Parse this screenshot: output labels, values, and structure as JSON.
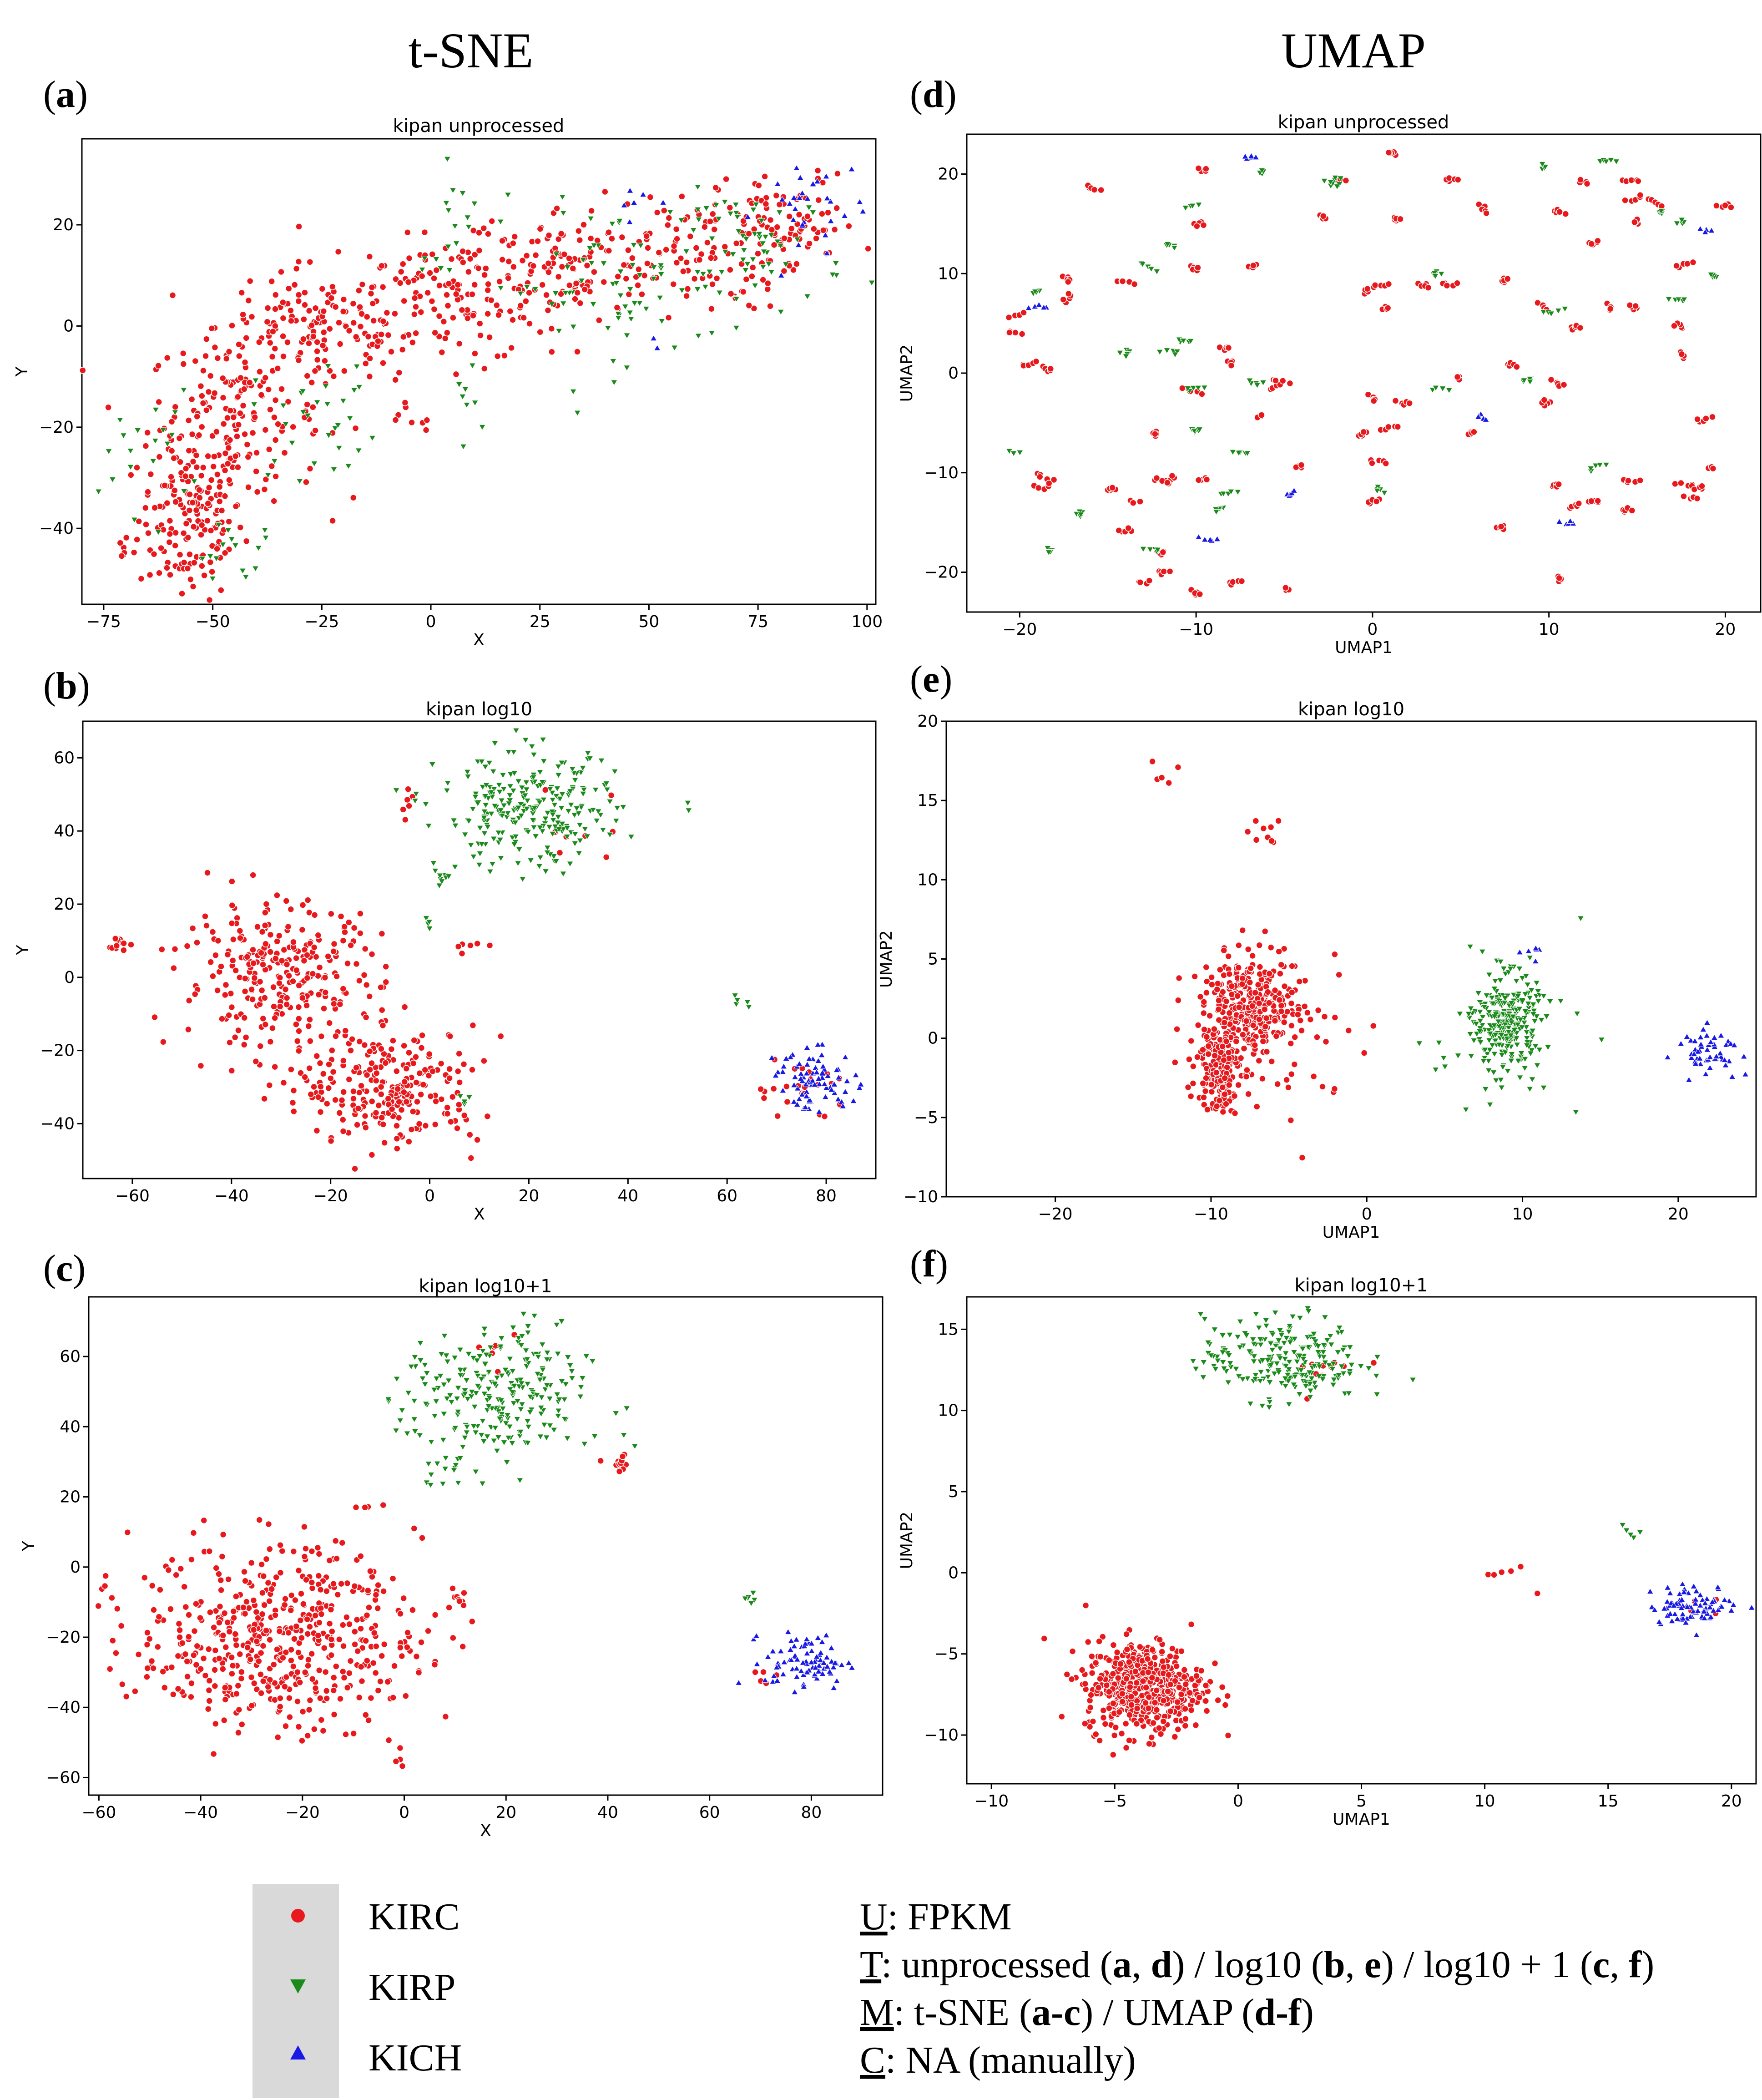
{
  "column_headers": {
    "left": "t-SNE",
    "right": "UMAP"
  },
  "panels": [
    {
      "label": "a",
      "title": "kipan unprocessed"
    },
    {
      "label": "d",
      "title": "kipan unprocessed"
    },
    {
      "label": "b",
      "title": "kipan log10"
    },
    {
      "label": "e",
      "title": "kipan log10"
    },
    {
      "label": "c",
      "title": "kipan log10+1"
    },
    {
      "label": "f",
      "title": "kipan log10+1"
    }
  ],
  "legend": {
    "items": [
      {
        "label": "KIRC",
        "color": "#e8191c",
        "marker": "circle"
      },
      {
        "label": "KIRP",
        "color": "#1a8a1a",
        "marker": "triangle-down"
      },
      {
        "label": "KICH",
        "color": "#1919e6",
        "marker": "triangle-up"
      }
    ]
  },
  "notes": [
    {
      "key": "U",
      "text": ": FPKM"
    },
    {
      "key": "T",
      "parts": [
        ": unprocessed (",
        "a",
        ", ",
        "d",
        ") / log10 (",
        "b",
        ", ",
        "e",
        ") / log10 + 1 (",
        "c",
        ", ",
        "f",
        ")"
      ]
    },
    {
      "key": "M",
      "parts": [
        ": t-SNE (",
        "a-c",
        ") / UMAP (",
        "d-f",
        ")"
      ]
    },
    {
      "key": "C",
      "text": ": NA (manually)"
    }
  ],
  "chart_data": [
    {
      "id": "a",
      "type": "scatter",
      "title": "kipan unprocessed",
      "xlabel": "X",
      "ylabel": "Y",
      "xlim": [
        -80,
        102
      ],
      "ylim": [
        -55,
        37
      ],
      "xticks": [
        -75,
        -50,
        -25,
        0,
        25,
        50,
        75,
        100
      ],
      "yticks": [
        -40,
        -20,
        0,
        20
      ],
      "series": [
        {
          "name": "KIRC",
          "clusters": [
            [
              -55,
              -38,
              6,
              8,
              160
            ],
            [
              -45,
              -18,
              10,
              8,
              170
            ],
            [
              -25,
              0,
              12,
              6,
              150
            ],
            [
              5,
              5,
              12,
              6,
              120
            ],
            [
              30,
              12,
              12,
              6,
              120
            ],
            [
              60,
              15,
              12,
              6,
              110
            ],
            [
              82,
              20,
              8,
              5,
              70
            ],
            [
              -70,
              -45,
              2,
              3,
              6
            ],
            [
              -5,
              -15,
              3,
              4,
              8
            ]
          ]
        },
        {
          "name": "KIRP",
          "clusters": [
            [
              -65,
              -25,
              5,
              6,
              20
            ],
            [
              -25,
              -18,
              8,
              6,
              30
            ],
            [
              40,
              8,
              14,
              8,
              70
            ],
            [
              75,
              15,
              10,
              6,
              60
            ],
            [
              5,
              22,
              3,
              5,
              15
            ],
            [
              -45,
              -45,
              6,
              3,
              15
            ],
            [
              10,
              -15,
              2,
              3,
              8
            ]
          ]
        },
        {
          "name": "KICH",
          "clusters": [
            [
              87,
              23,
              6,
              6,
              30
            ],
            [
              45,
              25,
              3,
              2,
              6
            ],
            [
              52,
              -2,
              1,
              1,
              2
            ]
          ]
        }
      ]
    },
    {
      "id": "d",
      "type": "scatter",
      "title": "kipan unprocessed",
      "xlabel": "UMAP1",
      "ylabel": "UMAP2",
      "xlim": [
        -23,
        22
      ],
      "ylim": [
        -24,
        24
      ],
      "xticks": [
        -20,
        -10,
        0,
        10,
        20
      ],
      "yticks": [
        -20,
        -10,
        0,
        10,
        20
      ],
      "series": [
        {
          "name": "KIRC",
          "clusters": [
            [
              0,
              0,
              11,
              11,
              420
            ]
          ]
        },
        {
          "name": "KIRP",
          "clusters": [
            [
              0,
              0,
              11,
              11,
              160
            ]
          ]
        },
        {
          "name": "KICH",
          "clusters": [
            [
              0,
              0,
              11,
              11,
              35
            ]
          ]
        }
      ]
    },
    {
      "id": "b",
      "type": "scatter",
      "title": "kipan log10",
      "xlabel": "X",
      "ylabel": "Y",
      "xlim": [
        -70,
        90
      ],
      "ylim": [
        -55,
        70
      ],
      "xticks": [
        -60,
        -40,
        -20,
        0,
        20,
        40,
        60,
        80
      ],
      "yticks": [
        -40,
        -20,
        0,
        20,
        40,
        60
      ],
      "series": [
        {
          "name": "KIRC",
          "clusters": [
            [
              -30,
              0,
              10,
              10,
              280
            ],
            [
              -8,
              -30,
              9,
              8,
              250
            ],
            [
              -63,
              9,
              1,
              1,
              12
            ],
            [
              75,
              -30,
              5,
              4,
              25
            ],
            [
              -5,
              48,
              1.5,
              2,
              6
            ],
            [
              8,
              8,
              2,
              2,
              6
            ],
            [
              30,
              40,
              6,
              6,
              8
            ]
          ]
        },
        {
          "name": "KIRP",
          "clusters": [
            [
              20,
              45,
              9,
              8,
              260
            ],
            [
              3,
              27,
              1,
              1,
              8
            ],
            [
              62,
              -6,
              1,
              1,
              5
            ],
            [
              0,
              15,
              1,
              1,
              4
            ],
            [
              8,
              -35,
              2,
              2,
              4
            ]
          ]
        },
        {
          "name": "KICH",
          "clusters": [
            [
              78,
              -28,
              4,
              4,
              80
            ]
          ]
        }
      ]
    },
    {
      "id": "e",
      "type": "scatter",
      "title": "kipan log10",
      "xlabel": "UMAP1",
      "ylabel": "UMAP2",
      "xlim": [
        -27,
        25
      ],
      "ylim": [
        -10,
        20
      ],
      "xticks": [
        -20,
        -10,
        0,
        10,
        20
      ],
      "yticks": [
        -10,
        -5,
        0,
        5,
        10,
        15,
        20
      ],
      "series": [
        {
          "name": "KIRC",
          "clusters": [
            [
              -7.5,
              2,
              1.5,
              1.5,
              320
            ],
            [
              -9.5,
              -2,
              0.7,
              1.3,
              160
            ],
            [
              -7,
              13,
              0.8,
              0.8,
              10
            ],
            [
              -13,
              17,
              1.5,
              0.6,
              5
            ],
            [
              -6,
              0,
              3,
              3,
              60
            ]
          ]
        },
        {
          "name": "KIRP",
          "clusters": [
            [
              9,
              1,
              1,
              1.5,
              280
            ],
            [
              8,
              -1,
              3,
              2,
              30
            ]
          ]
        },
        {
          "name": "KICH",
          "clusters": [
            [
              22,
              -0.7,
              1,
              0.7,
              55
            ],
            [
              11,
              5.4,
              1,
              0.2,
              6
            ]
          ]
        }
      ]
    },
    {
      "id": "c",
      "type": "scatter",
      "title": "kipan log10+1",
      "xlabel": "X",
      "ylabel": "Y",
      "xlim": [
        -62,
        94
      ],
      "ylim": [
        -65,
        77
      ],
      "xticks": [
        -60,
        -40,
        -20,
        0,
        20,
        40,
        60,
        80
      ],
      "yticks": [
        -60,
        -40,
        -20,
        0,
        20,
        40,
        60
      ],
      "series": [
        {
          "name": "KIRC",
          "clusters": [
            [
              -25,
              -20,
              14,
              13,
              520
            ],
            [
              43,
              30,
              1.5,
              1.5,
              12
            ],
            [
              11,
              -9,
              1,
              1.5,
              10
            ],
            [
              -7,
              17,
              1.5,
              0.5,
              4
            ],
            [
              -1,
              -55,
              0.8,
              3,
              4
            ],
            [
              70,
              -30,
              2,
              2,
              5
            ],
            [
              18,
              60,
              3,
              3,
              6
            ]
          ]
        },
        {
          "name": "KIRP",
          "clusters": [
            [
              18,
              48,
              9,
              10,
              260
            ],
            [
              8,
              25,
              1.5,
              3,
              10
            ],
            [
              68,
              -9,
              1,
              1,
              6
            ]
          ]
        },
        {
          "name": "KICH",
          "clusters": [
            [
              79,
              -27,
              4,
              4,
              85
            ]
          ]
        }
      ]
    },
    {
      "id": "f",
      "type": "scatter",
      "title": "kipan log10+1",
      "xlabel": "UMAP1",
      "ylabel": "UMAP2",
      "xlim": [
        -11,
        21
      ],
      "ylim": [
        -13,
        17
      ],
      "xticks": [
        -10,
        -5,
        0,
        5,
        10,
        15,
        20
      ],
      "yticks": [
        -10,
        -5,
        0,
        5,
        10,
        15
      ],
      "series": [
        {
          "name": "KIRC",
          "clusters": [
            [
              -3.8,
              -7,
              1.2,
              1.4,
              520
            ],
            [
              11,
              0,
              0.5,
              0.5,
              6
            ],
            [
              3,
              12.5,
              1,
              0.6,
              10
            ],
            [
              18.5,
              -2,
              0.5,
              0.3,
              4
            ]
          ]
        },
        {
          "name": "KIRP",
          "clusters": [
            [
              1.8,
              13.2,
              1.6,
              1.3,
              230
            ],
            [
              16,
              2.5,
              0.3,
              0.3,
              5
            ]
          ]
        },
        {
          "name": "KICH",
          "clusters": [
            [
              18.5,
              -2,
              0.9,
              0.6,
              85
            ]
          ]
        }
      ]
    }
  ]
}
